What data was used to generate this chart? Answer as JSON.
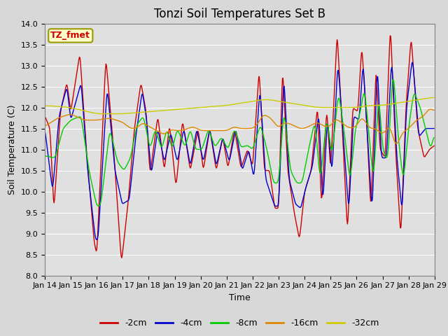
{
  "title": "Tonzi Soil Temperatures Set B",
  "xlabel": "Time",
  "ylabel": "Soil Temperature (C)",
  "ylim": [
    8.0,
    14.0
  ],
  "yticks": [
    8.0,
    8.5,
    9.0,
    9.5,
    10.0,
    10.5,
    11.0,
    11.5,
    12.0,
    12.5,
    13.0,
    13.5,
    14.0
  ],
  "xtick_labels": [
    "Jan 14",
    "Jan 15",
    "Jan 16",
    "Jan 17",
    "Jan 18",
    "Jan 19",
    "Jan 20",
    "Jan 21",
    "Jan 22",
    "Jan 23",
    "Jan 24",
    "Jan 25",
    "Jan 26",
    "Jan 27",
    "Jan 28",
    "Jan 29"
  ],
  "legend_label_box": "TZ_fmet",
  "series_colors": {
    "-2cm": "#cc0000",
    "-4cm": "#0000cc",
    "-8cm": "#00cc00",
    "-16cm": "#dd8800",
    "-32cm": "#cccc00"
  },
  "series_order": [
    "-2cm",
    "-4cm",
    "-8cm",
    "-16cm",
    "-32cm"
  ],
  "fig_facecolor": "#d8d8d8",
  "plot_bg_color": "#e0e0e0",
  "grid_color": "#ffffff",
  "title_fontsize": 12,
  "axis_fontsize": 9,
  "tick_fontsize": 8,
  "legend_fontsize": 9
}
